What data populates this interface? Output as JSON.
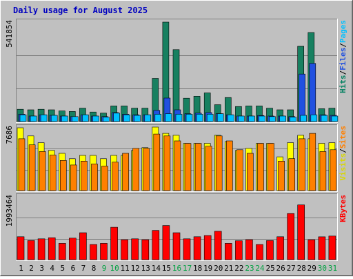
{
  "chart_data": {
    "title": "Daily usage for August 2025",
    "type": "bar",
    "categories": [
      "1",
      "2",
      "3",
      "4",
      "5",
      "6",
      "7",
      "8",
      "9",
      "10",
      "11",
      "12",
      "13",
      "14",
      "15",
      "16",
      "17",
      "18",
      "19",
      "20",
      "21",
      "22",
      "23",
      "24",
      "25",
      "26",
      "27",
      "28",
      "29",
      "30",
      "31"
    ],
    "weekend_days": [
      9,
      10,
      16,
      17,
      23,
      24,
      30,
      31
    ],
    "panels": [
      {
        "id": "hits",
        "ymax_label": "541854",
        "ymax": 541854,
        "legend": [
          {
            "text": "Pages",
            "color": "#00c0ff"
          },
          {
            "text": "Files",
            "color": "#2050e0"
          },
          {
            "text": "Hits",
            "color": "#008060"
          }
        ],
        "separator": "/",
        "series": [
          {
            "name": "Hits",
            "color": "#178060",
            "values": [
              67000,
              64000,
              67000,
              64000,
              58000,
              55000,
              73000,
              52000,
              46000,
              85000,
              85000,
              73000,
              73000,
              235000,
              541854,
              392000,
              127000,
              138000,
              156000,
              92000,
              131000,
              82000,
              85000,
              85000,
              73000,
              64000,
              64000,
              410000,
              485000,
              70000,
              73000
            ]
          },
          {
            "name": "Files",
            "color": "#2050e0",
            "values": [
              40000,
              30000,
              37000,
              34000,
              30000,
              27000,
              37000,
              30000,
              27000,
              49000,
              40000,
              37000,
              37000,
              61000,
              128000,
              64000,
              43000,
              46000,
              49000,
              43000,
              37000,
              30000,
              30000,
              33000,
              30000,
              30000,
              27000,
              259000,
              317000,
              37000,
              34000
            ]
          },
          {
            "name": "Pages",
            "color": "#00c0ff",
            "values": [
              37000,
              30000,
              37000,
              34000,
              30000,
              27000,
              37000,
              30000,
              24000,
              46000,
              37000,
              34000,
              37000,
              40000,
              43000,
              40000,
              40000,
              40000,
              40000,
              43000,
              37000,
              30000,
              30000,
              30000,
              27000,
              30000,
              24000,
              34000,
              37000,
              34000,
              30000
            ]
          }
        ]
      },
      {
        "id": "visits",
        "ymax_label": "7686",
        "ymax": 7686,
        "legend": [
          {
            "text": "Sites",
            "color": "#ff8000"
          },
          {
            "text": "Visits",
            "color": "#d8d800"
          }
        ],
        "separator": "/",
        "series": [
          {
            "name": "Visits",
            "color": "#ffff00",
            "values": [
              7686,
              6689,
              5865,
              4912,
              4565,
              3905,
              4305,
              4305,
              3905,
              4305,
              4305,
              4912,
              5256,
              7773,
              7000,
              6767,
              5778,
              5778,
              5778,
              6767,
              6000,
              4912,
              5170,
              5778,
              5778,
              4132,
              5865,
              6767,
              6343,
              5778,
              5865
            ]
          },
          {
            "name": "Sites",
            "color": "#ff8000",
            "values": [
              6341,
              5596,
              4782,
              4349,
              3695,
              3130,
              3608,
              3260,
              2998,
              3477,
              4565,
              5170,
              5170,
              6920,
              6689,
              6080,
              5778,
              5778,
              5430,
              6689,
              6080,
              5000,
              4565,
              5778,
              5778,
              3608,
              3913,
              6341,
              7000,
              4782,
              5000
            ]
          }
        ]
      },
      {
        "id": "kbytes",
        "ymax_label": "1993464",
        "ymax": 1993464,
        "legend": [
          {
            "text": "KBytes",
            "color": "#ff0000"
          }
        ],
        "separator": "",
        "series": [
          {
            "name": "KBytes",
            "color": "#ff0000",
            "values": [
              728000,
              607000,
              662000,
              697000,
              517000,
              684000,
              855000,
              483000,
              517000,
              1028000,
              632000,
              662000,
              632000,
              926000,
              1083000,
              855000,
              662000,
              728000,
              766000,
              900000,
              517000,
              601000,
              632000,
              483000,
              606000,
              728000,
              1463000,
              1737000,
              632000,
              725000,
              750000
            ]
          }
        ]
      }
    ]
  }
}
